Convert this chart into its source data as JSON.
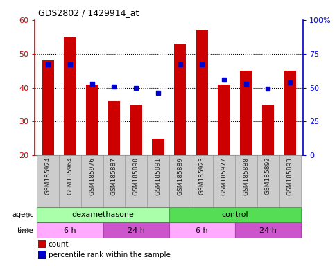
{
  "title": "GDS2802 / 1429914_at",
  "samples": [
    "GSM185924",
    "GSM185964",
    "GSM185976",
    "GSM185887",
    "GSM185890",
    "GSM185891",
    "GSM185889",
    "GSM185923",
    "GSM185977",
    "GSM185888",
    "GSM185892",
    "GSM185893"
  ],
  "counts": [
    48,
    55,
    41,
    36,
    35,
    25,
    53,
    57,
    41,
    45,
    35,
    45
  ],
  "pct_right": [
    67,
    67,
    53,
    51,
    50,
    46,
    67,
    67,
    56,
    53,
    49,
    54
  ],
  "ylim_left": [
    20,
    60
  ],
  "ylim_right": [
    0,
    100
  ],
  "ylabel_left_ticks": [
    20,
    30,
    40,
    50,
    60
  ],
  "ylabel_right_ticks": [
    0,
    25,
    50,
    75,
    100
  ],
  "ylabel_right_labels": [
    "0",
    "25",
    "50",
    "75",
    "100%"
  ],
  "bar_color": "#cc0000",
  "dot_color": "#0000cc",
  "bar_width": 0.55,
  "agent_groups": [
    {
      "label": "dexamethasone",
      "start": 0,
      "end": 6,
      "color": "#aaffaa"
    },
    {
      "label": "control",
      "start": 6,
      "end": 12,
      "color": "#55dd55"
    }
  ],
  "time_groups": [
    {
      "label": "6 h",
      "start": 0,
      "end": 3,
      "color": "#ffaaff"
    },
    {
      "label": "24 h",
      "start": 3,
      "end": 6,
      "color": "#cc55cc"
    },
    {
      "label": "6 h",
      "start": 6,
      "end": 9,
      "color": "#ffaaff"
    },
    {
      "label": "24 h",
      "start": 9,
      "end": 12,
      "color": "#cc55cc"
    }
  ],
  "legend_count_label": "count",
  "legend_pct_label": "percentile rank within the sample",
  "left_axis_color": "#cc0000",
  "right_axis_color": "#0000cc",
  "background_main": "#ffffff",
  "label_bg_color": "#cccccc",
  "label_edge_color": "#999999"
}
